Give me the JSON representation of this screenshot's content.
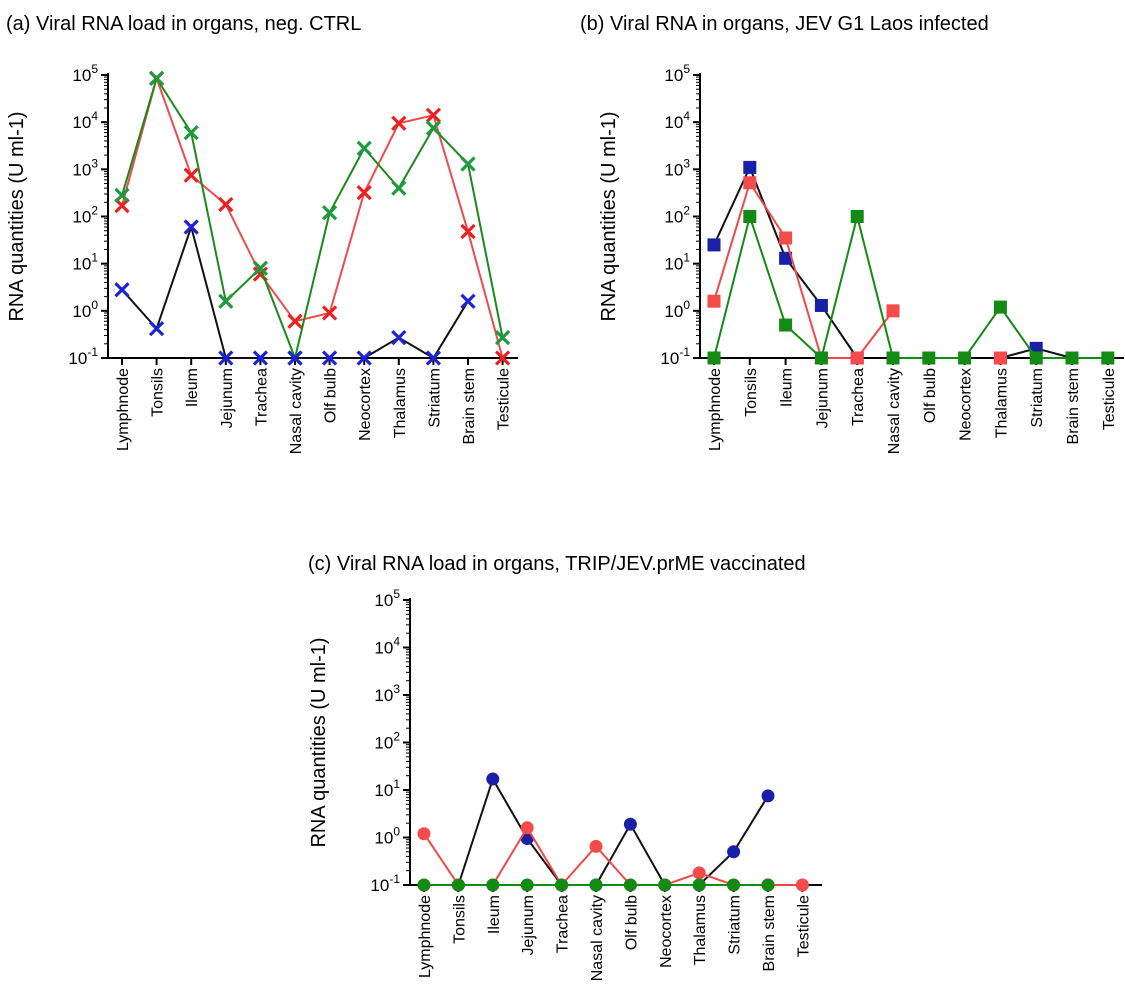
{
  "chart_data": [
    {
      "id": "a",
      "type": "line",
      "title": "(a) Viral RNA load in organs, neg. CTRL",
      "ylabel": "RNA quantities (U ml-1)",
      "yscale": "log",
      "ylim": [
        0.1,
        100000
      ],
      "ytick_labels": [
        {
          "value": 100000,
          "base": "10",
          "exp": "5"
        },
        {
          "value": 10000,
          "base": "10",
          "exp": "4"
        },
        {
          "value": 1000,
          "base": "10",
          "exp": "3"
        },
        {
          "value": 100,
          "base": "10",
          "exp": "2"
        },
        {
          "value": 10,
          "base": "10",
          "exp": "1"
        },
        {
          "value": 1,
          "base": "10",
          "exp": "0"
        },
        {
          "value": 0.1,
          "base": "10",
          "exp": "-1"
        }
      ],
      "marker": "x",
      "categories": [
        "Lymphnode",
        "Tonsils",
        "Ileum",
        "Jejunum",
        "Trachea",
        "Nasal cavity",
        "Olf bulb",
        "Neocortex",
        "Thalamus",
        "Striatum",
        "Brain stem",
        "Testicule"
      ],
      "series": [
        {
          "color": "#ef4b4b",
          "marker_color": "#e8231f",
          "values": [
            170,
            85000,
            750,
            180,
            6,
            0.6,
            0.9,
            320,
            9500,
            14000,
            48,
            0.1
          ]
        },
        {
          "color": "#1a8a1a",
          "marker_color": "#1f9a3f",
          "values": [
            280,
            85000,
            6000,
            1.6,
            8,
            0.1,
            120,
            2800,
            400,
            7500,
            1300,
            0.27
          ]
        },
        {
          "color": "#111111",
          "marker_color": "#1f23d6",
          "values": [
            2.8,
            0.42,
            60,
            0.1,
            0.1,
            0.1,
            0.1,
            0.1,
            0.27,
            0.1,
            1.6,
            null
          ]
        }
      ]
    },
    {
      "id": "b",
      "type": "line",
      "title": "(b) Viral RNA in organs, JEV G1 Laos infected",
      "ylabel": "RNA quantities (U ml-1)",
      "yscale": "log",
      "ylim": [
        0.1,
        100000
      ],
      "ytick_labels": [
        {
          "value": 100000,
          "base": "10",
          "exp": "5"
        },
        {
          "value": 10000,
          "base": "10",
          "exp": "4"
        },
        {
          "value": 1000,
          "base": "10",
          "exp": "3"
        },
        {
          "value": 100,
          "base": "10",
          "exp": "2"
        },
        {
          "value": 10,
          "base": "10",
          "exp": "1"
        },
        {
          "value": 1,
          "base": "10",
          "exp": "0"
        },
        {
          "value": 0.1,
          "base": "10",
          "exp": "-1"
        }
      ],
      "marker": "square",
      "categories": [
        "Lymphnode",
        "Tonsils",
        "Ileum",
        "Jejunum",
        "Trachea",
        "Nasal cavity",
        "Olf bulb",
        "Neocortex",
        "Thalamus",
        "Striatum",
        "Brain stem",
        "Testicule"
      ],
      "series": [
        {
          "color": "#111111",
          "marker_color": "#1a1fa8",
          "values": [
            25,
            1100,
            13,
            1.3,
            0.1,
            null,
            null,
            null,
            0.1,
            0.16,
            0.1,
            null
          ]
        },
        {
          "color": "#f04848",
          "marker_color": "#f44b4b",
          "values": [
            1.6,
            520,
            35,
            0.1,
            0.1,
            1.0,
            null,
            null,
            0.1,
            null,
            null,
            null
          ]
        },
        {
          "color": "#138a13",
          "marker_color": "#138a13",
          "values": [
            0.1,
            100,
            0.5,
            0.1,
            100,
            0.1,
            0.1,
            0.1,
            1.2,
            0.1,
            0.1,
            0.1
          ]
        }
      ]
    },
    {
      "id": "c",
      "type": "line",
      "title": "(c) Viral RNA load in organs, TRIP/JEV.prME vaccinated",
      "ylabel": "RNA quantities (U ml-1)",
      "yscale": "log",
      "ylim": [
        0.1,
        100000
      ],
      "ytick_labels": [
        {
          "value": 100000,
          "base": "10",
          "exp": "5"
        },
        {
          "value": 10000,
          "base": "10",
          "exp": "4"
        },
        {
          "value": 1000,
          "base": "10",
          "exp": "3"
        },
        {
          "value": 100,
          "base": "10",
          "exp": "2"
        },
        {
          "value": 10,
          "base": "10",
          "exp": "1"
        },
        {
          "value": 1,
          "base": "10",
          "exp": "0"
        },
        {
          "value": 0.1,
          "base": "10",
          "exp": "-1"
        }
      ],
      "marker": "circle",
      "categories": [
        "Lymphnode",
        "Tonsils",
        "Ileum",
        "Jejunum",
        "Trachea",
        "Nasal cavity",
        "Olf bulb",
        "Neocortex",
        "Thalamus",
        "Striatum",
        "Brain stem",
        "Testicule"
      ],
      "series": [
        {
          "color": "#111111",
          "marker_color": "#1a1fa8",
          "values": [
            null,
            0.1,
            17,
            0.95,
            0.1,
            0.1,
            1.9,
            0.1,
            0.1,
            0.5,
            7.5,
            null
          ]
        },
        {
          "color": "#f04848",
          "marker_color": "#f44b4b",
          "values": [
            1.2,
            0.1,
            0.1,
            1.6,
            0.1,
            0.65,
            0.1,
            0.1,
            0.18,
            0.1,
            0.1,
            0.1
          ]
        },
        {
          "color": "#138a13",
          "marker_color": "#138a13",
          "values": [
            0.1,
            0.1,
            0.1,
            0.1,
            0.1,
            0.1,
            0.1,
            0.1,
            0.1,
            0.1,
            0.1,
            null
          ]
        }
      ]
    }
  ]
}
